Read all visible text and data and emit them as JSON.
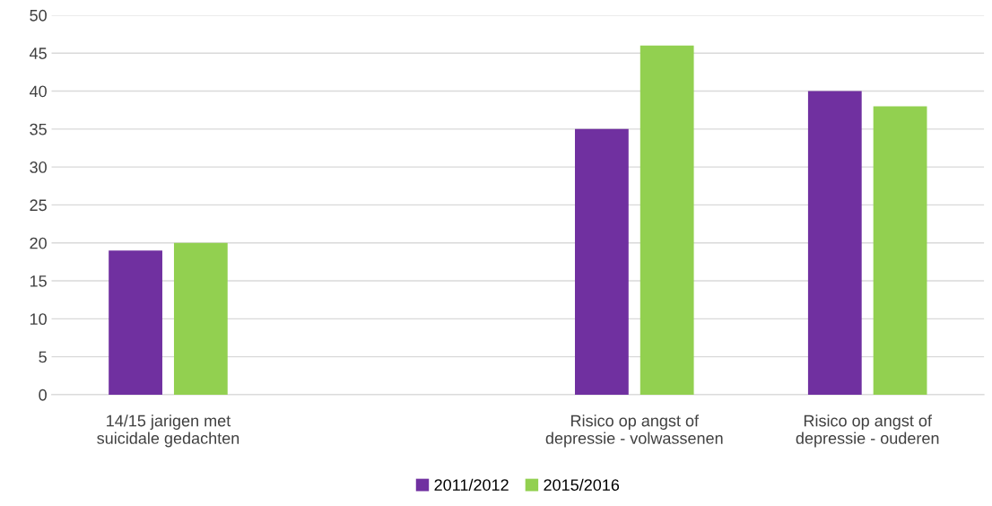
{
  "chart_data": {
    "type": "bar",
    "categories": [
      "14/15 jarigen met\nsuicidale gedachten",
      null,
      "Risico op angst of\ndepressie - volwassenen",
      "Risico op angst of\ndepressie - ouderen"
    ],
    "series": [
      {
        "name": "2011/2012",
        "color": "#7030a0",
        "values": [
          19,
          null,
          35,
          40
        ]
      },
      {
        "name": "2015/2016",
        "color": "#92d050",
        "values": [
          20,
          null,
          46,
          38
        ]
      }
    ],
    "ylim": [
      0,
      50
    ],
    "yticks": [
      0,
      5,
      10,
      15,
      20,
      25,
      30,
      35,
      40,
      45,
      50
    ],
    "grid": "y",
    "legend": "bottom"
  }
}
